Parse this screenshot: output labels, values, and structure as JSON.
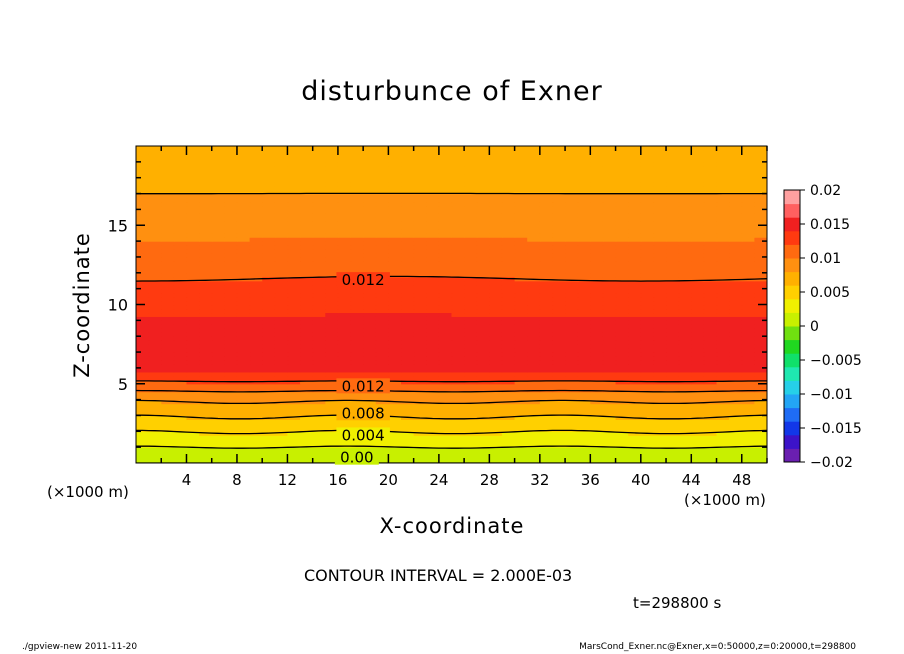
{
  "chart_data": {
    "type": "heatmap",
    "title": "disturbunce of Exner",
    "xlabel": "X-coordinate",
    "ylabel": "Z-coordinate",
    "x_unit_left": "(×1000 m)",
    "x_unit_right": "(×1000 m)",
    "xlim": [
      0,
      50
    ],
    "ylim": [
      0,
      20
    ],
    "x_ticks": [
      4,
      8,
      12,
      16,
      20,
      24,
      28,
      32,
      36,
      40,
      44,
      48
    ],
    "y_ticks": [
      5,
      10,
      15
    ],
    "contour_interval_text": "CONTOUR INTERVAL = 2.000E-03",
    "time_text": "t=298800 s",
    "colorbar": {
      "range": [
        -0.02,
        0.02
      ],
      "tick_labels": [
        "0.02",
        "0.015",
        "0.01",
        "0.005",
        "0",
        "−0.005",
        "−0.01",
        "−0.015",
        "−0.02"
      ],
      "tick_values": [
        0.02,
        0.015,
        0.01,
        0.005,
        0,
        -0.005,
        -0.01,
        -0.015,
        -0.02
      ],
      "colors": [
        "#6a1fb0",
        "#3c13c8",
        "#1237e8",
        "#1f6cf5",
        "#23a5f5",
        "#26d0e8",
        "#1fe8b0",
        "#10e06a",
        "#20d820",
        "#70e010",
        "#c8f000",
        "#f0f000",
        "#ffd000",
        "#ffb000",
        "#ff9010",
        "#ff6a10",
        "#ff3a10",
        "#f02020",
        "#ff6060",
        "#ffa0a0"
      ]
    },
    "profile_z": [
      0,
      1,
      2,
      3,
      4,
      5,
      6,
      7,
      8,
      9,
      10,
      11,
      12,
      13,
      14,
      15,
      16,
      17,
      18,
      19,
      20
    ],
    "profile_value": [
      0.0002,
      0.0021,
      0.0042,
      0.0063,
      0.0084,
      0.0116,
      0.0148,
      0.0155,
      0.0152,
      0.0143,
      0.0134,
      0.0125,
      0.0117,
      0.0109,
      0.0101,
      0.0094,
      0.0087,
      0.008,
      0.0074,
      0.0068,
      0.0063
    ],
    "contour_labels": [
      {
        "text": "0.012",
        "x": 18,
        "z": 11.6
      },
      {
        "text": "0.012",
        "x": 18,
        "z": 4.9
      },
      {
        "text": "0.008",
        "x": 18,
        "z": 3.2
      },
      {
        "text": "0.004",
        "x": 18,
        "z": 1.8
      },
      {
        "text": "0.00",
        "x": 17.5,
        "z": 0.4
      }
    ]
  },
  "footer_left": "./gpview-new   2011-11-20",
  "footer_right": "MarsCond_Exner.nc@Exner,x=0:50000,z=0:20000,t=298800"
}
